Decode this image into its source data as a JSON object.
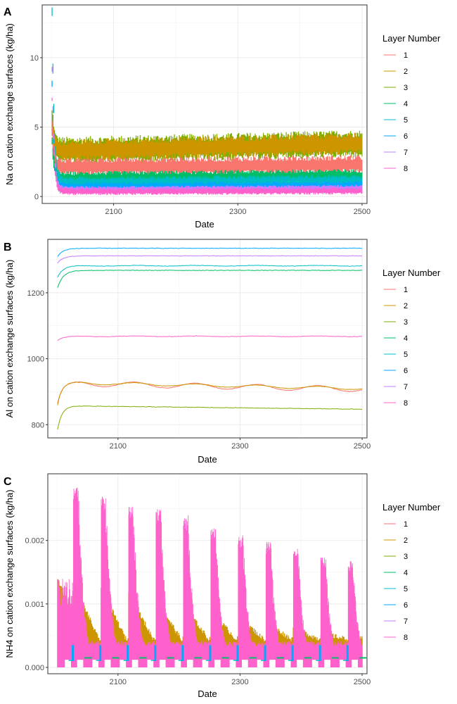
{
  "chart_data": [
    {
      "panel": "A",
      "type": "line",
      "style": "noisy-band",
      "xlabel": "Date",
      "ylabel": "Na on cation exchange surfaces (kg/ha)",
      "xlim": [
        1985,
        2508
      ],
      "ylim": [
        -0.5,
        13.8
      ],
      "xticks": [
        2100,
        2300,
        2500
      ],
      "yticks": [
        0,
        5,
        10
      ],
      "grid": true,
      "legend": {
        "title": "Layer Number",
        "position": "right"
      },
      "series": [
        {
          "name": "1",
          "color": "#F8766D",
          "start": 4.8,
          "level": 2.1,
          "trend": 0.2,
          "amp": 0.55
        },
        {
          "name": "2",
          "color": "#CD9600",
          "start": 5.2,
          "level": 3.3,
          "trend": 0.5,
          "amp": 0.65
        },
        {
          "name": "3",
          "color": "#7CAE00",
          "start": 5.4,
          "level": 3.3,
          "trend": 0.5,
          "amp": 0.8
        },
        {
          "name": "4",
          "color": "#00BE67",
          "start": 4.0,
          "level": 1.3,
          "trend": 0.2,
          "amp": 0.4
        },
        {
          "name": "5",
          "color": "#00BFC4",
          "start": 13.3,
          "level": 1.0,
          "trend": 0.15,
          "amp": 0.35
        },
        {
          "name": "6",
          "color": "#00A9FF",
          "start": 8.2,
          "level": 0.7,
          "trend": 0.1,
          "amp": 0.25
        },
        {
          "name": "7",
          "color": "#C77CFF",
          "start": 9.2,
          "level": 0.5,
          "trend": 0.1,
          "amp": 0.2
        },
        {
          "name": "8",
          "color": "#FF61CC",
          "start": 7.0,
          "level": 0.35,
          "trend": 0.05,
          "amp": 0.2
        }
      ]
    },
    {
      "panel": "B",
      "type": "line",
      "style": "curves",
      "xlabel": "Date",
      "ylabel": "Al on cation exchange surfaces (kg/ha)",
      "xlim": [
        1985,
        2508
      ],
      "ylim": [
        760,
        1362
      ],
      "xticks": [
        2100,
        2300,
        2500
      ],
      "yticks": [
        800,
        1000,
        1200
      ],
      "grid": true,
      "legend": {
        "title": "Layer Number",
        "position": "right"
      },
      "series": [
        {
          "name": "1",
          "color": "#F8766D",
          "start": 865,
          "level": 908,
          "peak": 925,
          "osc": 8
        },
        {
          "name": "2",
          "color": "#CD9600",
          "start": 860,
          "level": 910,
          "peak": 927,
          "osc": 4
        },
        {
          "name": "3",
          "color": "#7CAE00",
          "start": 785,
          "level": 847,
          "peak": 857,
          "osc": 0
        },
        {
          "name": "4",
          "color": "#00BE67",
          "start": 1215,
          "level": 1268,
          "peak": 1270,
          "osc": 0
        },
        {
          "name": "5",
          "color": "#00BFC4",
          "start": 1248,
          "level": 1282,
          "peak": 1282,
          "osc": 1
        },
        {
          "name": "6",
          "color": "#00A9FF",
          "start": 1310,
          "level": 1335,
          "peak": 1335,
          "osc": 0
        },
        {
          "name": "7",
          "color": "#C77CFF",
          "start": 1290,
          "level": 1312,
          "peak": 1312,
          "osc": 0
        },
        {
          "name": "8",
          "color": "#FF61CC",
          "start": 1055,
          "level": 1068,
          "peak": 1068,
          "osc": 1
        }
      ]
    },
    {
      "panel": "C",
      "type": "line",
      "style": "pulses",
      "xlabel": "Date",
      "ylabel": "NH4 on cation exchange surfaces (kg/ha)",
      "xlim": [
        1985,
        2508
      ],
      "ylim": [
        -0.0001,
        0.00305
      ],
      "xticks": [
        2100,
        2300,
        2500
      ],
      "yticks": [
        0,
        0.001,
        0.002
      ],
      "ytick_labels": [
        "0.000",
        "0.001",
        "0.002"
      ],
      "grid": true,
      "legend": {
        "title": "Layer Number",
        "position": "right"
      },
      "pulse_peaks_layer8": [
        0.00285,
        0.00272,
        0.00255,
        0.0025,
        0.00235,
        0.00222,
        0.00208,
        0.00198,
        0.00188,
        0.00175,
        0.00168
      ],
      "pulse_starts": [
        2027,
        2072,
        2117,
        2162,
        2207,
        2252,
        2297,
        2342,
        2387,
        2432,
        2477
      ],
      "series": [
        {
          "name": "1",
          "color": "#F8766D"
        },
        {
          "name": "2",
          "color": "#CD9600"
        },
        {
          "name": "3",
          "color": "#7CAE00"
        },
        {
          "name": "4",
          "color": "#00BE67"
        },
        {
          "name": "5",
          "color": "#00BFC4"
        },
        {
          "name": "6",
          "color": "#00A9FF"
        },
        {
          "name": "7",
          "color": "#C77CFF"
        },
        {
          "name": "8",
          "color": "#FF61CC"
        }
      ]
    }
  ]
}
